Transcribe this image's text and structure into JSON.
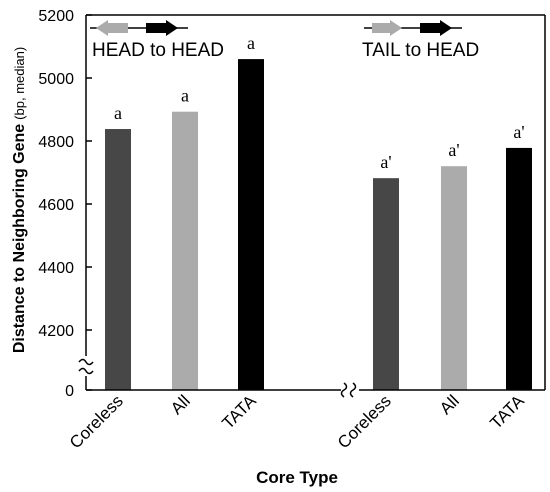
{
  "chart_data": {
    "type": "bar",
    "xlabel": "Core Type",
    "ylabel_main": "Distance to Neighboring Gene",
    "ylabel_sub": "(bp, median)",
    "ylim": [
      4100,
      5200
    ],
    "yticks": [
      4200,
      4400,
      4600,
      4800,
      5000,
      5200
    ],
    "y_zero_label": "0",
    "axis_break": true,
    "colors": {
      "Coreless": "#474747",
      "All": "#ababab",
      "TATA": "#000000"
    },
    "groups": [
      {
        "title": "HEAD to HEAD",
        "arrows": "opposite",
        "bars": [
          {
            "category": "Coreless",
            "value": 4838,
            "label": "a"
          },
          {
            "category": "All",
            "value": 4893,
            "label": "a"
          },
          {
            "category": "TATA",
            "value": 5060,
            "label": "a"
          }
        ]
      },
      {
        "title": "TAIL to HEAD",
        "arrows": "same",
        "bars": [
          {
            "category": "Coreless",
            "value": 4682,
            "label": "a'"
          },
          {
            "category": "All",
            "value": 4720,
            "label": "a'"
          },
          {
            "category": "TATA",
            "value": 4778,
            "label": "a'"
          }
        ]
      }
    ]
  }
}
